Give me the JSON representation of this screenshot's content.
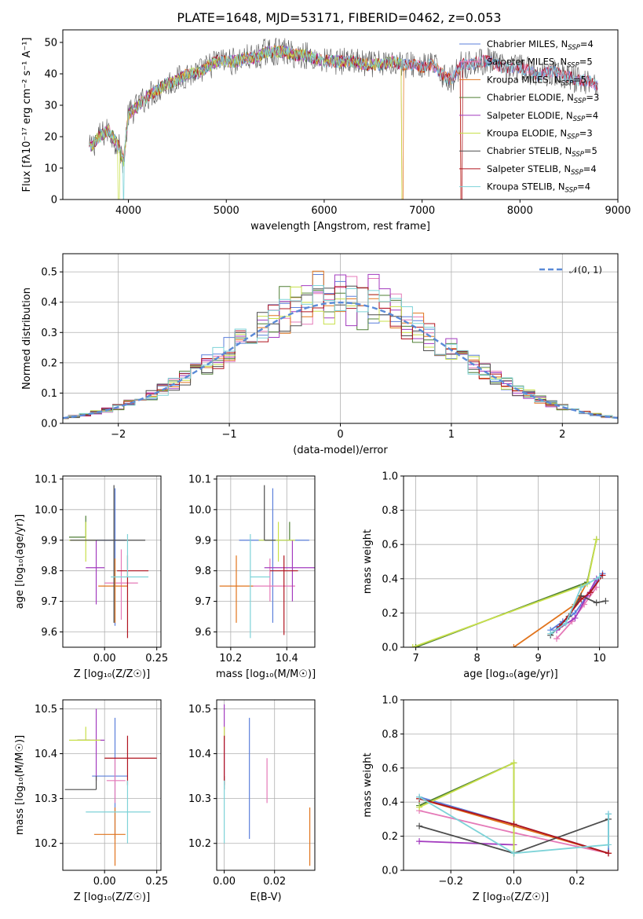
{
  "title": "PLATE=1648, MJD=53171, FIBERID=0462, z=0.053",
  "colors": {
    "Chabrier MILES": "#5b7fdb",
    "Salpeter MILES": "#e57ab8",
    "Kroupa MILES": "#e1741d",
    "Chabrier ELODIE": "#4f7f35",
    "Salpeter ELODIE": "#a33bbf",
    "Kroupa ELODIE": "#c8e04a",
    "Chabrier STELIB": "#4d4d4d",
    "Salpeter STELIB": "#b0141f",
    "Kroupa STELIB": "#7ed3d8",
    "gaussian": "#5a8ad7",
    "grid": "#b0b0b0"
  },
  "chart_data": [
    {
      "id": "spectrum",
      "type": "line",
      "title": "PLATE=1648, MJD=53171, FIBERID=0462, z=0.053",
      "xlabel": "wavelength [Angstrom, rest frame]",
      "ylabel": "Flux [fλ10⁻¹⁷ erg cm⁻² s⁻¹ A⁻¹]",
      "xlim": [
        3330,
        9000
      ],
      "ylim": [
        0,
        54
      ],
      "xticks": [
        4000,
        5000,
        6000,
        7000,
        8000,
        9000
      ],
      "yticks": [
        0,
        10,
        20,
        30,
        40,
        50
      ],
      "grid": false,
      "legend_position": "top-right",
      "data_x": [
        3600,
        3700,
        3800,
        3900,
        3950,
        4000,
        4100,
        4200,
        4300,
        4400,
        4500,
        4600,
        4700,
        4800,
        4900,
        5000,
        5100,
        5200,
        5300,
        5400,
        5500,
        5600,
        5700,
        5800,
        5900,
        6000,
        6100,
        6200,
        6300,
        6400,
        6500,
        6600,
        6700,
        6800,
        6900,
        7000,
        7100,
        7200,
        7300,
        7400,
        7500,
        7600,
        7700,
        7800,
        7900,
        8000,
        8100,
        8200,
        8300,
        8400,
        8500,
        8600,
        8700,
        8800
      ],
      "data_y": [
        16,
        20,
        22,
        17,
        12,
        27,
        30,
        33,
        35,
        37,
        38,
        40,
        40,
        42,
        44,
        44,
        44,
        45,
        45,
        47,
        47,
        47,
        46,
        46,
        45,
        44,
        44,
        44,
        44,
        43,
        43,
        43,
        44,
        43,
        43,
        42,
        43,
        40,
        38,
        43,
        43,
        44,
        44,
        42,
        42,
        42,
        41,
        39,
        41,
        40,
        39,
        38,
        38,
        36
      ],
      "dropouts": [
        {
          "series": "Kroupa ELODIE",
          "x": 3900
        },
        {
          "series": "Kroupa STELIB",
          "x": 3950
        },
        {
          "series": "Kroupa ELODIE",
          "x": 6800
        },
        {
          "series": "Kroupa MILES",
          "x": 6800
        },
        {
          "series": "Salpeter STELIB",
          "x": 7400
        },
        {
          "series": "Kroupa MILES",
          "x": 7400
        }
      ],
      "legend": [
        {
          "name": "Chabrier MILES",
          "nssp": "4"
        },
        {
          "name": "Salpeter MILES",
          "nssp": "5"
        },
        {
          "name": "Kroupa MILES",
          "nssp": "5"
        },
        {
          "name": "Chabrier ELODIE",
          "nssp": "3"
        },
        {
          "name": "Salpeter ELODIE",
          "nssp": "4"
        },
        {
          "name": "Kroupa ELODIE",
          "nssp": "3"
        },
        {
          "name": "Chabrier STELIB",
          "nssp": "5"
        },
        {
          "name": "Salpeter STELIB",
          "nssp": "4"
        },
        {
          "name": "Kroupa STELIB",
          "nssp": "4"
        }
      ]
    },
    {
      "id": "residuals",
      "type": "line",
      "xlabel": "(data-model)/error",
      "ylabel": "Normed distribution",
      "xlim": [
        -2.5,
        2.5
      ],
      "ylim": [
        0,
        0.56
      ],
      "xticks": [
        -2,
        -1,
        0,
        1,
        2
      ],
      "yticks": [
        0.0,
        0.1,
        0.2,
        0.3,
        0.4,
        0.5
      ],
      "grid": true,
      "legend_position": "top-right",
      "gaussian_label": "𝒩(0, 1)",
      "bin_width": 0.1
    },
    {
      "id": "age-vs-Z",
      "type": "scatter",
      "xlabel": "Z [log₁₀(Z/Z☉)]",
      "ylabel": "age  [log₁₀(age/yr)]",
      "xlim": [
        -0.2,
        0.27
      ],
      "ylim": [
        9.55,
        10.11
      ],
      "xticks": [
        0.0,
        0.25
      ],
      "yticks": [
        9.6,
        9.7,
        9.8,
        9.9,
        10.0,
        10.1
      ],
      "grid": true,
      "points": [
        {
          "series": "Chabrier MILES",
          "x": 0.05,
          "xerr": [
            0.12,
            0.05
          ],
          "y": 9.9,
          "yerr": [
            0.28,
            0.17
          ]
        },
        {
          "series": "Salpeter MILES",
          "x": 0.08,
          "xerr": [
            0.08,
            0.08
          ],
          "y": 9.76,
          "yerr": [
            0.12,
            0.11
          ]
        },
        {
          "series": "Kroupa MILES",
          "x": 0.05,
          "xerr": [
            0.08,
            0.06
          ],
          "y": 9.75,
          "yerr": [
            0.12,
            0.09
          ]
        },
        {
          "series": "Chabrier ELODIE",
          "x": -0.09,
          "xerr": [
            0.08,
            0.0
          ],
          "y": 9.91,
          "yerr": [
            0.0,
            0.07
          ]
        },
        {
          "series": "Salpeter ELODIE",
          "x": -0.04,
          "xerr": [
            0.05,
            0.04
          ],
          "y": 9.81,
          "yerr": [
            0.12,
            0.09
          ]
        },
        {
          "series": "Kroupa ELODIE",
          "x": -0.09,
          "xerr": [
            0.08,
            0.05
          ],
          "y": 9.9,
          "yerr": [
            0.07,
            0.06
          ]
        },
        {
          "series": "Chabrier STELIB",
          "x": 0.045,
          "xerr": [
            0.21,
            0.15
          ],
          "y": 9.9,
          "yerr": [
            0.27,
            0.18
          ]
        },
        {
          "series": "Salpeter STELIB",
          "x": 0.11,
          "xerr": [
            0.05,
            0.1
          ],
          "y": 9.8,
          "yerr": [
            0.22,
            0.05
          ]
        },
        {
          "series": "Kroupa STELIB",
          "x": 0.11,
          "xerr": [
            0.08,
            0.1
          ],
          "y": 9.78,
          "yerr": [
            0.0,
            0.14
          ]
        }
      ]
    },
    {
      "id": "age-vs-mass",
      "type": "scatter",
      "xlabel": "mass [log₁₀(M/M☉)]",
      "ylabel": "",
      "xlim": [
        10.15,
        10.5
      ],
      "ylim": [
        9.55,
        10.11
      ],
      "xticks": [
        10.2,
        10.4
      ],
      "yticks": [
        9.6,
        9.7,
        9.8,
        9.9,
        10.0,
        10.1
      ],
      "grid": true,
      "points": [
        {
          "series": "Chabrier MILES",
          "x": 10.35,
          "xerr": [
            0.12,
            0.13
          ],
          "y": 9.9,
          "yerr": [
            0.27,
            0.17
          ]
        },
        {
          "series": "Salpeter MILES",
          "x": 10.34,
          "xerr": [
            0.07,
            0.09
          ],
          "y": 9.75,
          "yerr": [
            0.05,
            0.09
          ]
        },
        {
          "series": "Kroupa MILES",
          "x": 10.22,
          "xerr": [
            0.06,
            0.06
          ],
          "y": 9.75,
          "yerr": [
            0.12,
            0.1
          ]
        },
        {
          "series": "Chabrier ELODIE",
          "x": 10.41,
          "xerr": [
            0.0,
            0.0
          ],
          "y": 9.9,
          "yerr": [
            0.0,
            0.06
          ]
        },
        {
          "series": "Salpeter ELODIE",
          "x": 10.42,
          "xerr": [
            0.1,
            0.1
          ],
          "y": 9.81,
          "yerr": [
            0.11,
            0.09
          ]
        },
        {
          "series": "Kroupa ELODIE",
          "x": 10.37,
          "xerr": [
            0.07,
            0.06
          ],
          "y": 9.9,
          "yerr": [
            0.07,
            0.06
          ]
        },
        {
          "series": "Chabrier STELIB",
          "x": 10.32,
          "xerr": [
            0.0,
            0.04
          ],
          "y": 9.9,
          "yerr": [
            0.0,
            0.18
          ]
        },
        {
          "series": "Salpeter STELIB",
          "x": 10.39,
          "xerr": [
            0.05,
            0.05
          ],
          "y": 9.8,
          "yerr": [
            0.21,
            0.05
          ]
        },
        {
          "series": "Kroupa STELIB",
          "x": 10.27,
          "xerr": [
            0.0,
            0.07
          ],
          "y": 9.78,
          "yerr": [
            0.2,
            0.14
          ]
        }
      ]
    },
    {
      "id": "mass-weight-vs-age",
      "type": "line",
      "xlabel": "age  [log₁₀(age/yr)]",
      "ylabel": "mass weight",
      "xlim": [
        6.8,
        10.3
      ],
      "ylim": [
        0,
        1
      ],
      "xticks": [
        7,
        8,
        9,
        10
      ],
      "yticks": [
        0.0,
        0.2,
        0.4,
        0.6,
        0.8,
        1.0
      ],
      "grid": true,
      "series": [
        {
          "name": "Chabrier MILES",
          "x": [
            9.2,
            9.4,
            9.6,
            10.05
          ],
          "y": [
            0.1,
            0.15,
            0.2,
            0.43
          ]
        },
        {
          "name": "Salpeter MILES",
          "x": [
            9.3,
            9.55,
            9.75,
            9.95
          ],
          "y": [
            0.05,
            0.15,
            0.25,
            0.35
          ]
        },
        {
          "name": "Kroupa MILES",
          "x": [
            8.6,
            9.6,
            9.8
          ],
          "y": [
            0.0,
            0.25,
            0.38
          ]
        },
        {
          "name": "Chabrier ELODIE",
          "x": [
            7.0,
            9.8,
            9.95
          ],
          "y": [
            0.0,
            0.38,
            0.63
          ]
        },
        {
          "name": "Salpeter ELODIE",
          "x": [
            9.3,
            9.6,
            9.8,
            9.95
          ],
          "y": [
            0.1,
            0.17,
            0.3,
            0.4
          ]
        },
        {
          "name": "Kroupa ELODIE",
          "x": [
            6.95,
            9.8,
            9.95
          ],
          "y": [
            0.0,
            0.37,
            0.63
          ]
        },
        {
          "name": "Chabrier STELIB",
          "x": [
            9.2,
            9.5,
            9.7,
            9.95,
            10.1
          ],
          "y": [
            0.07,
            0.18,
            0.3,
            0.26,
            0.27
          ]
        },
        {
          "name": "Salpeter STELIB",
          "x": [
            9.35,
            9.7,
            9.85,
            10.05
          ],
          "y": [
            0.12,
            0.28,
            0.32,
            0.42
          ]
        },
        {
          "name": "Kroupa STELIB",
          "x": [
            9.2,
            9.45,
            9.7,
            10.0
          ],
          "y": [
            0.08,
            0.14,
            0.35,
            0.41
          ]
        }
      ]
    },
    {
      "id": "mass-vs-Z",
      "type": "scatter",
      "xlabel": "Z [log₁₀(Z/Z☉)]",
      "ylabel": "mass [log₁₀(M/M☉)]",
      "xlim": [
        -0.2,
        0.27
      ],
      "ylim": [
        10.14,
        10.52
      ],
      "xticks": [
        0.0,
        0.25
      ],
      "yticks": [
        10.2,
        10.3,
        10.4,
        10.5
      ],
      "grid": true,
      "points": [
        {
          "series": "Chabrier MILES",
          "x": 0.05,
          "xerr": [
            0.11,
            0.06
          ],
          "y": 10.35,
          "yerr": [
            0.14,
            0.13
          ]
        },
        {
          "series": "Salpeter MILES",
          "x": 0.05,
          "xerr": [
            0.04,
            0.05
          ],
          "y": 10.34,
          "yerr": [
            0.05,
            0.05
          ]
        },
        {
          "series": "Kroupa MILES",
          "x": 0.05,
          "xerr": [
            0.1,
            0.05
          ],
          "y": 10.22,
          "yerr": [
            0.07,
            0.06
          ]
        },
        {
          "series": "Chabrier ELODIE",
          "x": -0.07,
          "xerr": [
            0.06,
            0.0
          ],
          "y": 10.43,
          "yerr": [
            0.0,
            0.0
          ]
        },
        {
          "series": "Salpeter ELODIE",
          "x": -0.04,
          "xerr": [
            0.09,
            0.04
          ],
          "y": 10.43,
          "yerr": [
            0.09,
            0.07
          ]
        },
        {
          "series": "Kroupa ELODIE",
          "x": -0.09,
          "xerr": [
            0.08,
            0.07
          ],
          "y": 10.43,
          "yerr": [
            0.0,
            0.03
          ]
        },
        {
          "series": "Chabrier STELIB",
          "x": -0.04,
          "xerr": [
            0.15,
            0.0
          ],
          "y": 10.32,
          "yerr": [
            0.0,
            0.03
          ]
        },
        {
          "series": "Salpeter STELIB",
          "x": 0.11,
          "xerr": [
            0.11,
            0.14
          ],
          "y": 10.39,
          "yerr": [
            0.06,
            0.05
          ]
        },
        {
          "series": "Kroupa STELIB",
          "x": 0.11,
          "xerr": [
            0.2,
            0.11
          ],
          "y": 10.27,
          "yerr": [
            0.07,
            0.07
          ]
        }
      ]
    },
    {
      "id": "mass-vs-ebv",
      "type": "scatter",
      "xlabel": "E(B-V)",
      "ylabel": "",
      "xlim": [
        -0.003,
        0.036
      ],
      "ylim": [
        10.14,
        10.52
      ],
      "xticks": [
        0.0,
        0.02
      ],
      "yticks": [
        10.2,
        10.3,
        10.4,
        10.5
      ],
      "grid": true,
      "points": [
        {
          "series": "Chabrier MILES",
          "x": 0.01,
          "y": 10.35,
          "yerr": [
            0.14,
            0.13
          ]
        },
        {
          "series": "Salpeter MILES",
          "x": 0.017,
          "y": 10.34,
          "yerr": [
            0.05,
            0.05
          ]
        },
        {
          "series": "Kroupa MILES",
          "x": 0.034,
          "y": 10.22,
          "yerr": [
            0.07,
            0.06
          ]
        },
        {
          "series": "Chabrier ELODIE",
          "x": 0.0,
          "y": 10.43,
          "yerr": [
            0.0,
            0.01
          ]
        },
        {
          "series": "Salpeter ELODIE",
          "x": 0.0,
          "y": 10.43,
          "yerr": [
            0.09,
            0.08
          ]
        },
        {
          "series": "Kroupa ELODIE",
          "x": 0.0,
          "y": 10.43,
          "yerr": [
            0.0,
            0.03
          ]
        },
        {
          "series": "Chabrier STELIB",
          "x": 0.0,
          "y": 10.32,
          "yerr": [
            0.0,
            0.03
          ]
        },
        {
          "series": "Salpeter STELIB",
          "x": 0.0,
          "y": 10.39,
          "yerr": [
            0.06,
            0.05
          ]
        },
        {
          "series": "Kroupa STELIB",
          "x": 0.0,
          "y": 10.27,
          "yerr": [
            0.07,
            0.07
          ]
        }
      ]
    },
    {
      "id": "mass-weight-vs-Z",
      "type": "line",
      "xlabel": "Z [log₁₀(Z/Z☉)]",
      "ylabel": "mass weight",
      "xlim": [
        -0.35,
        0.33
      ],
      "ylim": [
        0,
        1
      ],
      "xticks": [
        -0.2,
        0.0,
        0.2
      ],
      "yticks": [
        0.0,
        0.2,
        0.4,
        0.6,
        0.8,
        1.0
      ],
      "grid": true,
      "series": [
        {
          "name": "Chabrier MILES",
          "x": [
            -0.3,
            0.0,
            0.3,
            0.3
          ],
          "y": [
            0.43,
            0.27,
            0.1,
            0.33
          ]
        },
        {
          "name": "Salpeter MILES",
          "x": [
            -0.3,
            0.0,
            0.3
          ],
          "y": [
            0.35,
            0.22,
            0.1
          ]
        },
        {
          "name": "Kroupa MILES",
          "x": [
            -0.3,
            0.3
          ],
          "y": [
            0.42,
            0.1
          ]
        },
        {
          "name": "Chabrier ELODIE",
          "x": [
            -0.3,
            0.0,
            0.0
          ],
          "y": [
            0.38,
            0.63,
            0.1
          ]
        },
        {
          "name": "Salpeter ELODIE",
          "x": [
            -0.3,
            0.0
          ],
          "y": [
            0.17,
            0.15
          ]
        },
        {
          "name": "Kroupa ELODIE",
          "x": [
            -0.3,
            0.0,
            0.0
          ],
          "y": [
            0.37,
            0.63,
            0.1
          ]
        },
        {
          "name": "Chabrier STELIB",
          "x": [
            -0.3,
            0.0,
            0.3
          ],
          "y": [
            0.26,
            0.1,
            0.3
          ]
        },
        {
          "name": "Salpeter STELIB",
          "x": [
            -0.3,
            0.0,
            0.3
          ],
          "y": [
            0.42,
            0.27,
            0.1
          ]
        },
        {
          "name": "Kroupa STELIB",
          "x": [
            -0.3,
            0.0,
            0.3,
            0.3
          ],
          "y": [
            0.43,
            0.1,
            0.15,
            0.33
          ]
        }
      ]
    }
  ]
}
